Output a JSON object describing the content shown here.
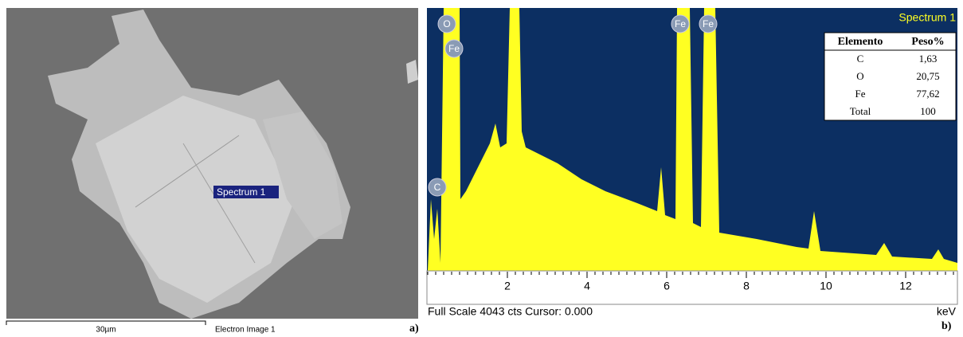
{
  "sem": {
    "label": "Spectrum 1",
    "scale_bar": "30µm",
    "caption": "Electron Image 1",
    "panel": "a)"
  },
  "spectrum": {
    "title": "Spectrum 1",
    "xlim": [
      0,
      13.3
    ],
    "xticks": [
      2,
      4,
      6,
      8,
      10,
      12
    ],
    "unit": "keV",
    "footer": "Full Scale 4043 cts Cursor: 0.000",
    "panel": "b)",
    "peaks": [
      "O",
      "Fe",
      "C",
      "Fe",
      "Fe"
    ],
    "table": {
      "header": [
        "Elemento",
        "Peso%"
      ],
      "rows": [
        [
          "C",
          "1,63"
        ],
        [
          "O",
          "20,75"
        ],
        [
          "Fe",
          "77,62"
        ],
        [
          "Total",
          "100"
        ]
      ]
    }
  }
}
